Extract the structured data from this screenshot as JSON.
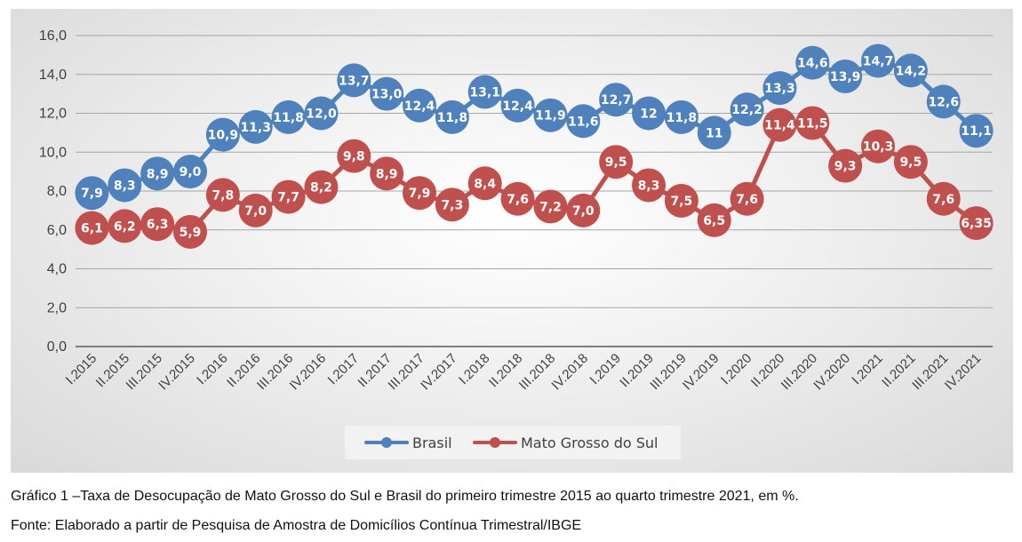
{
  "chart_data": {
    "type": "line",
    "categories": [
      "I.2015",
      "II.2015",
      "III.2015",
      "IV.2015",
      "I.2016",
      "II.2016",
      "III.2016",
      "IV.2016",
      "I.2017",
      "II.2017",
      "III.2017",
      "IV.2017",
      "I.2018",
      "II.2018",
      "III.2018",
      "IV.2018",
      "I.2019",
      "II.2019",
      "III.2019",
      "IV.2019",
      "I.2020",
      "II.2020",
      "III.2020",
      "IV.2020",
      "I.2021",
      "II.2021",
      "III.2021",
      "IV.2021"
    ],
    "series": [
      {
        "name": "Brasil",
        "color": "#4f81bd",
        "values": [
          7.9,
          8.3,
          8.9,
          9.0,
          10.9,
          11.3,
          11.8,
          12.0,
          13.7,
          13.0,
          12.4,
          11.8,
          13.1,
          12.4,
          11.9,
          11.6,
          12.7,
          12,
          11.8,
          11,
          12.2,
          13.3,
          14.6,
          13.9,
          14.7,
          14.2,
          12.6,
          11.1
        ],
        "labels": [
          "7,9",
          "8,3",
          "8,9",
          "9,0",
          "10,9",
          "11,3",
          "11,8",
          "12,0",
          "13,7",
          "13,0",
          "12,4",
          "11,8",
          "13,1",
          "12,4",
          "11,9",
          "11,6",
          "12,7",
          "12",
          "11,8",
          "11",
          "12,2",
          "13,3",
          "14,6",
          "13,9",
          "14,7",
          "14,2",
          "12,6",
          "11,1"
        ]
      },
      {
        "name": "Mato Grosso do Sul",
        "color": "#c0504d",
        "values": [
          6.1,
          6.2,
          6.3,
          5.9,
          7.8,
          7.0,
          7.7,
          8.2,
          9.8,
          8.9,
          7.9,
          7.3,
          8.4,
          7.6,
          7.2,
          7.0,
          9.5,
          8.3,
          7.5,
          6.5,
          7.6,
          11.4,
          11.5,
          9.3,
          10.3,
          9.5,
          7.6,
          6.35
        ],
        "labels": [
          "6,1",
          "6,2",
          "6,3",
          "5,9",
          "7,8",
          "7,0",
          "7,7",
          "8,2",
          "9,8",
          "8,9",
          "7,9",
          "7,3",
          "8,4",
          "7,6",
          "7,2",
          "7,0",
          "9,5",
          "8,3",
          "7,5",
          "6,5",
          "7,6",
          "11,4",
          "11,5",
          "9,3",
          "10,3",
          "9,5",
          "7,6",
          "6,35"
        ]
      }
    ],
    "ylim": [
      0,
      16
    ],
    "yticks": [
      0,
      2,
      4,
      6,
      8,
      10,
      12,
      14,
      16
    ],
    "ytick_labels": [
      "0,0",
      "2,0",
      "4,0",
      "6,0",
      "8,0",
      "10,0",
      "12,0",
      "14,0",
      "16,0"
    ],
    "grid": true,
    "legend_position": "bottom",
    "title": "",
    "xlabel": "",
    "ylabel": ""
  },
  "caption": "Gráfico 1 –Taxa de Desocupação de Mato Grosso do Sul e Brasil do primeiro trimestre 2015 ao quarto trimestre 2021, em %.",
  "source": "Fonte: Elaborado a partir de Pesquisa de Amostra de Domicílios Contínua Trimestral/IBGE"
}
